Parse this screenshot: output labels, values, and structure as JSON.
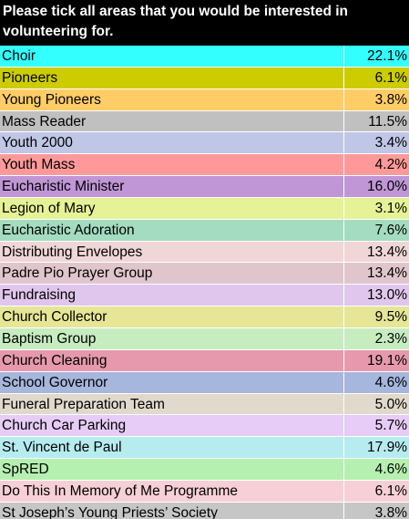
{
  "header": {
    "line1": "Please tick all areas that you would be interested in",
    "line2": "volunteering for."
  },
  "rows": [
    {
      "label": "Choir",
      "value": "22.1%",
      "color": "#33ffff"
    },
    {
      "label": "Pioneers",
      "value": "6.1%",
      "color": "#cccc00"
    },
    {
      "label": "Young Pioneers",
      "value": "3.8%",
      "color": "#ffcc66"
    },
    {
      "label": "Mass Reader",
      "value": "11.5%",
      "color": "#c0c0c0"
    },
    {
      "label": "Youth 2000",
      "value": "3.4%",
      "color": "#c0c6e6"
    },
    {
      "label": "Youth Mass",
      "value": "4.2%",
      "color": "#ff9999"
    },
    {
      "label": "Eucharistic Minister",
      "value": "16.0%",
      "color": "#c096d6"
    },
    {
      "label": "Legion of Mary",
      "value": "3.1%",
      "color": "#e6f296"
    },
    {
      "label": "Eucharistic Adoration",
      "value": "7.6%",
      "color": "#a3dcc0"
    },
    {
      "label": "Distributing Envelopes",
      "value": "13.4%",
      "color": "#f0d6d6"
    },
    {
      "label": "Padre Pio Prayer Group",
      "value": "13.4%",
      "color": "#e0c6cc"
    },
    {
      "label": "Fundraising",
      "value": "13.0%",
      "color": "#e0c6ec"
    },
    {
      "label": "Church Collector",
      "value": "9.5%",
      "color": "#e6e696"
    },
    {
      "label": "Baptism Group",
      "value": "2.3%",
      "color": "#c6ecc0"
    },
    {
      "label": "Church Cleaning",
      "value": "19.1%",
      "color": "#e699ac"
    },
    {
      "label": "School Governor",
      "value": "4.6%",
      "color": "#a6b6dc"
    },
    {
      "label": "Funeral Preparation Team",
      "value": "5.0%",
      "color": "#e0d9cc"
    },
    {
      "label": "Church Car Parking",
      "value": "5.7%",
      "color": "#e6ccf6"
    },
    {
      "label": "St. Vincent de Paul",
      "value": "17.9%",
      "color": "#b6ecf0"
    },
    {
      "label": "SpRED",
      "value": "4.6%",
      "color": "#b6f0b0"
    },
    {
      "label": "Do This In Memory of Me Programme",
      "value": "6.1%",
      "color": "#f6d0d6"
    },
    {
      "label": "St Joseph’s Young Priests’ Society",
      "value": "3.8%",
      "color": "#c6c6c6"
    }
  ]
}
